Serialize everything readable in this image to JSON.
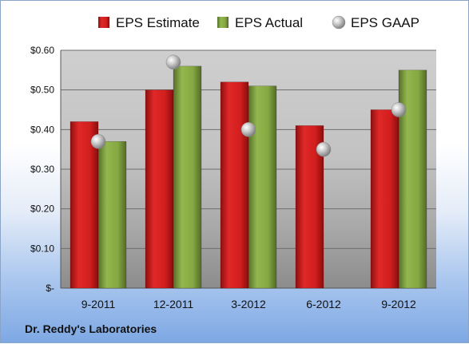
{
  "chart_data": {
    "type": "bar",
    "title": "",
    "xlabel": "",
    "ylabel": "",
    "categories": [
      "9-2011",
      "12-2011",
      "3-2012",
      "6-2012",
      "9-2012"
    ],
    "series": [
      {
        "name": "EPS Estimate",
        "type": "bar",
        "color": "#c81a1a",
        "values": [
          0.42,
          0.5,
          0.52,
          0.41,
          0.45
        ]
      },
      {
        "name": "EPS Actual",
        "type": "bar",
        "color": "#7fa03c",
        "values": [
          0.37,
          0.56,
          0.51,
          null,
          0.55
        ]
      },
      {
        "name": "EPS GAAP",
        "type": "scatter",
        "color": "#b5b5b5",
        "values": [
          0.37,
          0.57,
          0.4,
          0.35,
          0.45
        ]
      }
    ],
    "ylim": [
      0,
      0.6
    ],
    "yticks": [
      0,
      0.1,
      0.2,
      0.3,
      0.4,
      0.5,
      0.6
    ],
    "ytick_labels": [
      "$-",
      "$0.10",
      "$0.20",
      "$0.30",
      "$0.40",
      "$0.50",
      "$0.60"
    ],
    "grid": true,
    "legend_position": "top"
  },
  "footer": {
    "company": "Dr. Reddy's Laboratories"
  }
}
